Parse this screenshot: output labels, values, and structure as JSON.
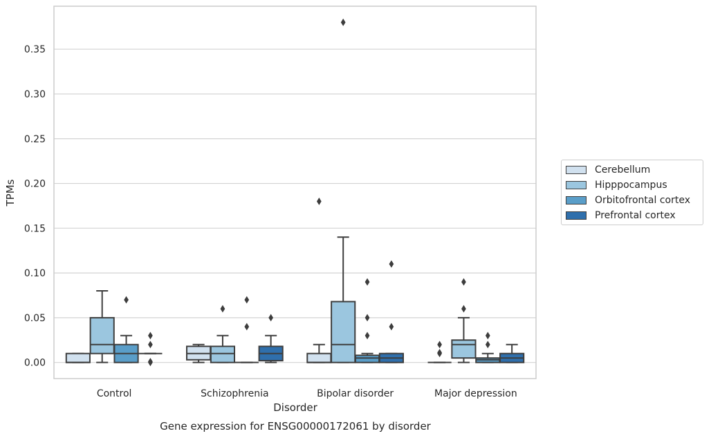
{
  "chart_data": {
    "type": "box",
    "title": "Gene expression for ENSG00000172061 by disorder",
    "xlabel": "Disorder",
    "ylabel": "TPMs",
    "ylim": [
      -0.018,
      0.398
    ],
    "yticks": [
      "0.00",
      "0.05",
      "0.10",
      "0.15",
      "0.20",
      "0.25",
      "0.30",
      "0.35"
    ],
    "grid": true,
    "legend_position": "right",
    "categories": [
      "Control",
      "Schizophrenia",
      "Bipolar disorder",
      "Major depression"
    ],
    "series": [
      {
        "name": "Cerebellum",
        "color": "#d1e1ef",
        "boxes": [
          {
            "q1": 0.0,
            "median": 0.0,
            "q3": 0.01,
            "whisker_low": 0.0,
            "whisker_high": 0.01,
            "outliers": []
          },
          {
            "q1": 0.003,
            "median": 0.01,
            "q3": 0.018,
            "whisker_low": 0.0,
            "whisker_high": 0.02,
            "outliers": []
          },
          {
            "q1": 0.0,
            "median": 0.0,
            "q3": 0.01,
            "whisker_low": 0.0,
            "whisker_high": 0.02,
            "outliers": [
              0.18
            ]
          },
          {
            "q1": 0.0,
            "median": 0.0,
            "q3": 0.0,
            "whisker_low": 0.0,
            "whisker_high": 0.0,
            "outliers": [
              0.01,
              0.011,
              0.02
            ]
          }
        ]
      },
      {
        "name": "Hipppocampus",
        "color": "#9bc6df",
        "boxes": [
          {
            "q1": 0.01,
            "median": 0.02,
            "q3": 0.05,
            "whisker_low": 0.0,
            "whisker_high": 0.08,
            "outliers": []
          },
          {
            "q1": 0.0,
            "median": 0.01,
            "q3": 0.018,
            "whisker_low": 0.0,
            "whisker_high": 0.03,
            "outliers": [
              0.06
            ]
          },
          {
            "q1": 0.0,
            "median": 0.02,
            "q3": 0.068,
            "whisker_low": 0.0,
            "whisker_high": 0.14,
            "outliers": [
              0.38
            ]
          },
          {
            "q1": 0.005,
            "median": 0.02,
            "q3": 0.025,
            "whisker_low": 0.0,
            "whisker_high": 0.05,
            "outliers": [
              0.06,
              0.09
            ]
          }
        ]
      },
      {
        "name": "Orbitofrontal cortex",
        "color": "#5a9ec9",
        "boxes": [
          {
            "q1": 0.0,
            "median": 0.01,
            "q3": 0.02,
            "whisker_low": 0.0,
            "whisker_high": 0.03,
            "outliers": [
              0.07
            ]
          },
          {
            "q1": 0.0,
            "median": 0.0,
            "q3": 0.0,
            "whisker_low": 0.0,
            "whisker_high": 0.0,
            "outliers": [
              0.04,
              0.07
            ]
          },
          {
            "q1": 0.0,
            "median": 0.005,
            "q3": 0.008,
            "whisker_low": 0.0,
            "whisker_high": 0.01,
            "outliers": [
              0.03,
              0.05,
              0.09
            ]
          },
          {
            "q1": 0.0,
            "median": 0.003,
            "q3": 0.005,
            "whisker_low": 0.0,
            "whisker_high": 0.01,
            "outliers": [
              0.02,
              0.03
            ]
          }
        ]
      },
      {
        "name": "Prefrontal cortex",
        "color": "#2f6fac",
        "boxes": [
          {
            "q1": 0.01,
            "median": 0.01,
            "q3": 0.01,
            "whisker_low": 0.01,
            "whisker_high": 0.01,
            "outliers": [
              0.0,
              0.001,
              0.02,
              0.03
            ]
          },
          {
            "q1": 0.002,
            "median": 0.01,
            "q3": 0.018,
            "whisker_low": 0.0,
            "whisker_high": 0.03,
            "outliers": [
              0.05
            ]
          },
          {
            "q1": 0.0,
            "median": 0.005,
            "q3": 0.01,
            "whisker_low": 0.0,
            "whisker_high": 0.01,
            "outliers": [
              0.04,
              0.11
            ]
          },
          {
            "q1": 0.0,
            "median": 0.005,
            "q3": 0.01,
            "whisker_low": 0.0,
            "whisker_high": 0.02,
            "outliers": []
          }
        ]
      }
    ]
  }
}
